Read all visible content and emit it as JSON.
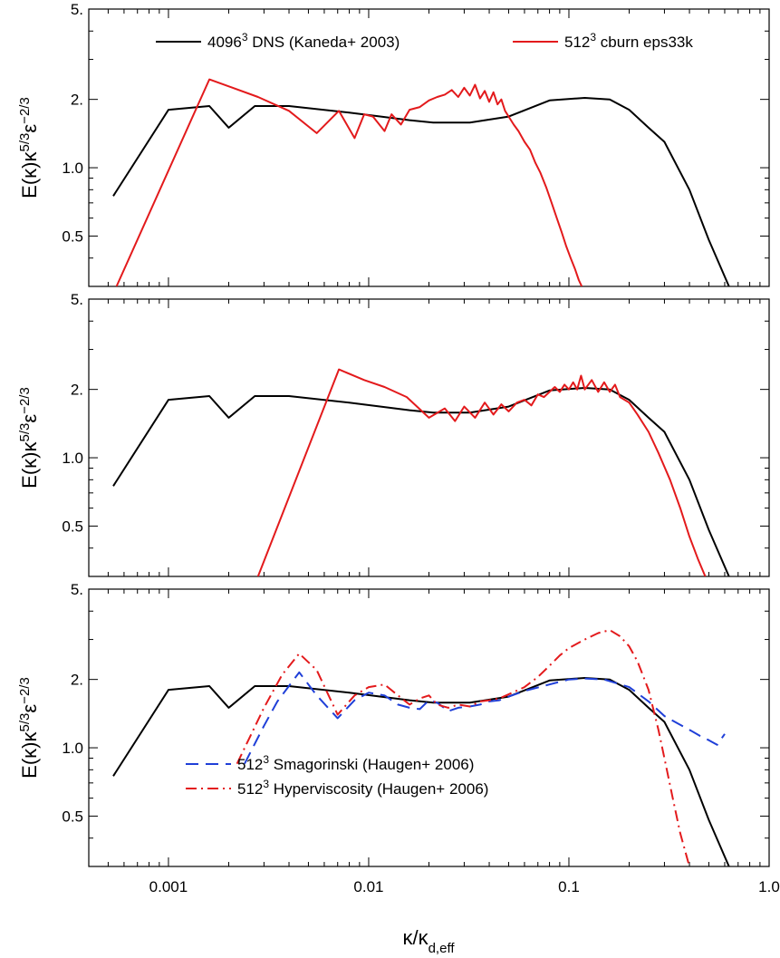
{
  "chart_data": {
    "type": "line",
    "xscale": "log",
    "yscale": "log",
    "xlim": [
      0.0004,
      1.0
    ],
    "ylim": [
      0.3,
      5.0
    ],
    "xlabel": {
      "main": "κ/κ",
      "sub": "d,eff"
    },
    "x_tick_labels": [
      {
        "value": 0.001,
        "label": "0.001"
      },
      {
        "value": 0.01,
        "label": "0.01"
      },
      {
        "value": 0.1,
        "label": "0.1"
      },
      {
        "value": 1.0,
        "label": "1.0"
      }
    ],
    "y_tick_labels": [
      {
        "value": 0.5,
        "label": "0.5"
      },
      {
        "value": 1.0,
        "label": "1.0"
      },
      {
        "value": 2.0,
        "label": "2."
      },
      {
        "value": 5.0,
        "label": "5."
      }
    ],
    "colors": {
      "dns": "#000000",
      "cburn": "#e31a1c",
      "smag": "#1f3fd8",
      "hyper": "#e31a1c"
    },
    "panels": [
      {
        "ylabel": {
          "base": "E(κ)κ",
          "sup1": "5/3",
          "mid": "ε",
          "sup2": "−2/3"
        },
        "legend": [
          {
            "label": "4096",
            "sup": "3",
            "rest": " DNS (Kaneda+ 2003)",
            "series": "dns",
            "style": "solid"
          },
          {
            "label": "512",
            "sup": "3",
            "rest": " cburn eps33k",
            "series": "cburn",
            "style": "solid"
          }
        ],
        "series": [
          {
            "key": "dns",
            "style": "solid",
            "x": [
              0.00053,
              0.001,
              0.0016,
              0.002,
              0.0027,
              0.004,
              0.008,
              0.016,
              0.021,
              0.032,
              0.05,
              0.08,
              0.12,
              0.16,
              0.2,
              0.25,
              0.3,
              0.4,
              0.5,
              0.63
            ],
            "y": [
              0.75,
              1.8,
              1.87,
              1.5,
              1.87,
              1.87,
              1.75,
              1.62,
              1.58,
              1.58,
              1.68,
              1.98,
              2.03,
              2.0,
              1.8,
              1.5,
              1.3,
              0.8,
              0.48,
              0.3
            ]
          },
          {
            "key": "cburn",
            "style": "solid",
            "x": [
              0.00055,
              0.0016,
              0.0028,
              0.004,
              0.0055,
              0.0071,
              0.0085,
              0.0095,
              0.0105,
              0.012,
              0.013,
              0.0145,
              0.016,
              0.018,
              0.02,
              0.022,
              0.024,
              0.026,
              0.028,
              0.03,
              0.032,
              0.034,
              0.036,
              0.038,
              0.04,
              0.042,
              0.044,
              0.046,
              0.048,
              0.05,
              0.053,
              0.056,
              0.06,
              0.064,
              0.068,
              0.072,
              0.077,
              0.082,
              0.087,
              0.092,
              0.097,
              0.102,
              0.107,
              0.112,
              0.116
            ],
            "y": [
              0.3,
              2.45,
              2.05,
              1.78,
              1.42,
              1.78,
              1.35,
              1.72,
              1.68,
              1.45,
              1.72,
              1.55,
              1.8,
              1.85,
              1.98,
              2.05,
              2.1,
              2.2,
              2.05,
              2.25,
              2.08,
              2.32,
              2.02,
              2.18,
              1.95,
              2.15,
              1.9,
              2.0,
              1.78,
              1.68,
              1.55,
              1.45,
              1.3,
              1.2,
              1.05,
              0.95,
              0.82,
              0.7,
              0.6,
              0.52,
              0.45,
              0.4,
              0.36,
              0.32,
              0.3
            ]
          }
        ]
      },
      {
        "ylabel": {
          "base": "E(κ)κ",
          "sup1": "5/3",
          "mid": "ε",
          "sup2": "−2/3"
        },
        "legend": [],
        "series": [
          {
            "key": "dns",
            "style": "solid",
            "x": [
              0.00053,
              0.001,
              0.0016,
              0.002,
              0.0027,
              0.004,
              0.008,
              0.016,
              0.021,
              0.032,
              0.05,
              0.08,
              0.12,
              0.16,
              0.2,
              0.25,
              0.3,
              0.4,
              0.5,
              0.63
            ],
            "y": [
              0.75,
              1.8,
              1.87,
              1.5,
              1.87,
              1.87,
              1.75,
              1.62,
              1.58,
              1.58,
              1.68,
              1.98,
              2.03,
              2.0,
              1.8,
              1.5,
              1.3,
              0.8,
              0.48,
              0.3
            ]
          },
          {
            "key": "cburn",
            "style": "solid",
            "x": [
              0.0028,
              0.0071,
              0.0095,
              0.012,
              0.0155,
              0.02,
              0.024,
              0.027,
              0.03,
              0.034,
              0.038,
              0.042,
              0.046,
              0.05,
              0.055,
              0.06,
              0.065,
              0.07,
              0.075,
              0.08,
              0.085,
              0.09,
              0.095,
              0.1,
              0.105,
              0.11,
              0.115,
              0.12,
              0.13,
              0.14,
              0.15,
              0.16,
              0.17,
              0.18,
              0.2,
              0.22,
              0.25,
              0.28,
              0.32,
              0.36,
              0.4,
              0.44,
              0.48
            ],
            "y": [
              0.3,
              2.45,
              2.2,
              2.05,
              1.85,
              1.5,
              1.65,
              1.45,
              1.68,
              1.5,
              1.75,
              1.55,
              1.72,
              1.6,
              1.75,
              1.8,
              1.7,
              1.9,
              1.85,
              1.95,
              2.05,
              1.95,
              2.1,
              2.0,
              2.15,
              2.0,
              2.3,
              2.0,
              2.2,
              1.95,
              2.15,
              1.95,
              2.1,
              1.85,
              1.75,
              1.55,
              1.3,
              1.05,
              0.8,
              0.6,
              0.45,
              0.36,
              0.3
            ]
          }
        ]
      },
      {
        "ylabel": {
          "base": "E(κ)κ",
          "sup1": "5/3",
          "mid": "ε",
          "sup2": "−2/3"
        },
        "legend": [
          {
            "label": "512",
            "sup": "3",
            "rest": " Smagorinski (Haugen+ 2006)",
            "series": "smag",
            "style": "dashed"
          },
          {
            "label": "512",
            "sup": "3",
            "rest": " Hyperviscosity (Haugen+ 2006)",
            "series": "hyper",
            "style": "dashdot"
          }
        ],
        "series": [
          {
            "key": "dns",
            "style": "solid",
            "x": [
              0.00053,
              0.001,
              0.0016,
              0.002,
              0.0027,
              0.004,
              0.008,
              0.016,
              0.021,
              0.032,
              0.05,
              0.08,
              0.12,
              0.16,
              0.2,
              0.25,
              0.3,
              0.4,
              0.5,
              0.63
            ],
            "y": [
              0.75,
              1.8,
              1.87,
              1.5,
              1.87,
              1.87,
              1.75,
              1.62,
              1.58,
              1.58,
              1.68,
              1.98,
              2.03,
              2.0,
              1.8,
              1.5,
              1.3,
              0.8,
              0.48,
              0.3
            ]
          },
          {
            "key": "smag",
            "style": "dashed",
            "x": [
              0.0024,
              0.003,
              0.0035,
              0.0045,
              0.0055,
              0.007,
              0.0085,
              0.01,
              0.012,
              0.014,
              0.016,
              0.018,
              0.02,
              0.022,
              0.025,
              0.028,
              0.032,
              0.036,
              0.04,
              0.045,
              0.05,
              0.06,
              0.08,
              0.1,
              0.12,
              0.15,
              0.2,
              0.25,
              0.3,
              0.35,
              0.4,
              0.45,
              0.5,
              0.55,
              0.6
            ],
            "y": [
              0.85,
              1.25,
              1.6,
              2.15,
              1.7,
              1.35,
              1.62,
              1.75,
              1.7,
              1.55,
              1.5,
              1.48,
              1.62,
              1.58,
              1.45,
              1.5,
              1.52,
              1.55,
              1.6,
              1.62,
              1.68,
              1.78,
              1.9,
              2.0,
              2.02,
              2.0,
              1.85,
              1.6,
              1.38,
              1.28,
              1.2,
              1.13,
              1.08,
              1.03,
              1.15
            ]
          },
          {
            "key": "hyper",
            "style": "dashdot",
            "x": [
              0.0022,
              0.003,
              0.0037,
              0.0045,
              0.0055,
              0.007,
              0.0085,
              0.01,
              0.012,
              0.014,
              0.016,
              0.018,
              0.02,
              0.022,
              0.025,
              0.028,
              0.032,
              0.036,
              0.04,
              0.045,
              0.05,
              0.06,
              0.07,
              0.08,
              0.09,
              0.1,
              0.12,
              0.14,
              0.16,
              0.18,
              0.2,
              0.22,
              0.25,
              0.28,
              0.3,
              0.33,
              0.36,
              0.4
            ],
            "y": [
              0.85,
              1.5,
              2.1,
              2.6,
              2.2,
              1.4,
              1.7,
              1.85,
              1.9,
              1.7,
              1.55,
              1.65,
              1.7,
              1.55,
              1.5,
              1.55,
              1.52,
              1.6,
              1.62,
              1.65,
              1.72,
              1.85,
              2.05,
              2.3,
              2.55,
              2.75,
              3.0,
              3.2,
              3.3,
              3.1,
              2.8,
              2.4,
              1.8,
              1.2,
              0.9,
              0.6,
              0.42,
              0.3
            ]
          }
        ]
      }
    ]
  }
}
